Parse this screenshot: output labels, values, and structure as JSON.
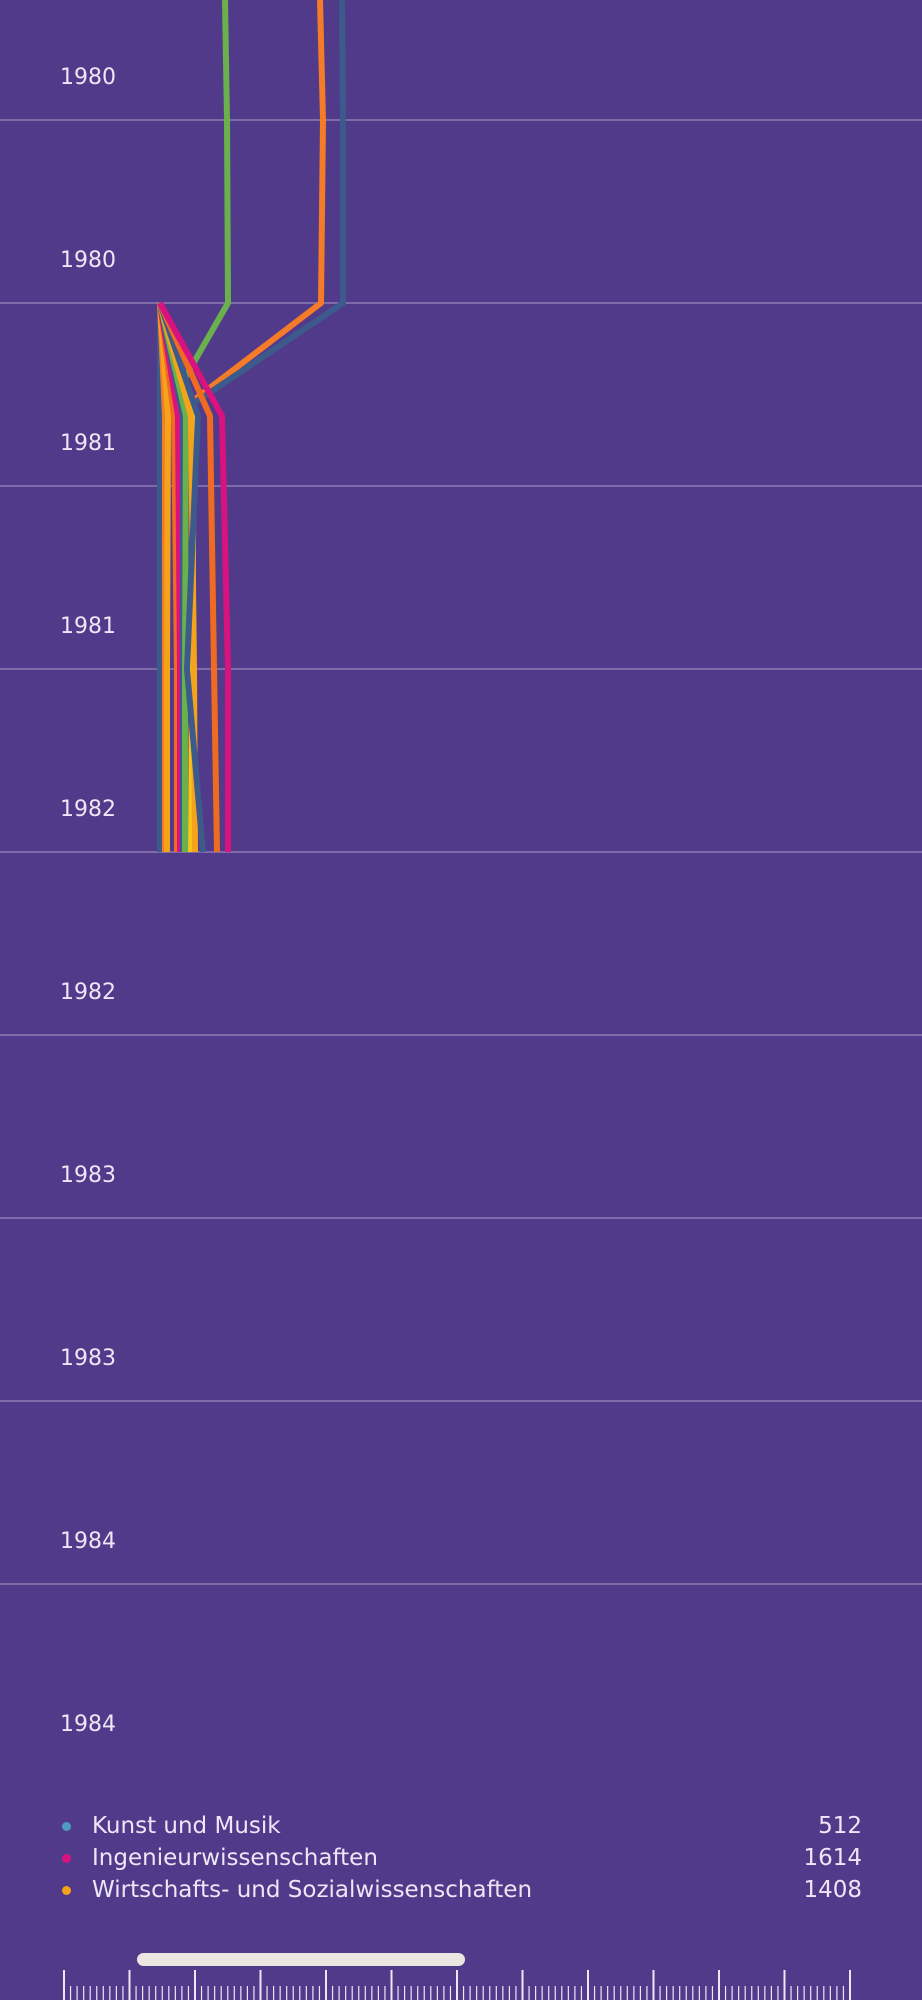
{
  "chart_data": {
    "type": "line",
    "orientation": "vertical-time-axis",
    "y_tick_labels": [
      "1980",
      "1980",
      "1981",
      "1981",
      "1982",
      "1982",
      "1983",
      "1983",
      "1984",
      "1984"
    ],
    "series": [
      {
        "color": "#6ab04c",
        "points": [
          [
            155,
            0
          ],
          [
            157,
            1
          ],
          [
            158,
            2
          ],
          [
            93,
            3
          ]
        ]
      },
      {
        "color": "#f47b27",
        "points": [
          [
            250,
            0
          ],
          [
            253,
            1
          ],
          [
            251,
            2
          ],
          [
            103,
            3
          ]
        ]
      },
      {
        "color": "#3d5a8c",
        "points": [
          [
            272,
            0
          ],
          [
            273,
            1
          ],
          [
            273,
            2
          ],
          [
            105,
            3
          ]
        ]
      },
      {
        "color": "#3d5a8c",
        "points": [
          [
            90,
            2
          ],
          [
            90,
            3
          ],
          [
            90,
            4
          ],
          [
            90,
            5
          ]
        ]
      },
      {
        "color": "#f47b27",
        "points": [
          [
            90,
            2
          ],
          [
            95,
            3
          ],
          [
            95,
            4
          ],
          [
            95,
            5
          ]
        ]
      },
      {
        "color": "#f5a31a",
        "points": [
          [
            90,
            2
          ],
          [
            98,
            3
          ],
          [
            97,
            4
          ],
          [
            97,
            5
          ]
        ]
      },
      {
        "color": "#f06b22",
        "points": [
          [
            90,
            2
          ],
          [
            104,
            3
          ],
          [
            107,
            4
          ],
          [
            107,
            5
          ]
        ]
      },
      {
        "color": "#d8127f",
        "points": [
          [
            90,
            2
          ],
          [
            108,
            3
          ],
          [
            110,
            4
          ],
          [
            110,
            5
          ]
        ]
      },
      {
        "color": "#3d5a8c",
        "points": [
          [
            90,
            2
          ],
          [
            113,
            3
          ],
          [
            113,
            4
          ],
          [
            113,
            5
          ]
        ]
      },
      {
        "color": "#6ab04c",
        "points": [
          [
            90,
            2
          ],
          [
            116,
            3
          ],
          [
            115,
            4
          ],
          [
            115,
            5
          ]
        ]
      },
      {
        "color": "#f5c518",
        "points": [
          [
            90,
            2
          ],
          [
            124,
            3
          ],
          [
            122,
            4
          ],
          [
            121,
            5
          ]
        ]
      },
      {
        "color": "#f5a31a",
        "points": [
          [
            90,
            2
          ],
          [
            121,
            3
          ],
          [
            124,
            4
          ],
          [
            125,
            5
          ]
        ]
      },
      {
        "color": "#3d5a8c",
        "points": [
          [
            90,
            2
          ],
          [
            128,
            3
          ],
          [
            117,
            4
          ],
          [
            133,
            5
          ]
        ]
      },
      {
        "color": "#f06b22",
        "points": [
          [
            90,
            2
          ],
          [
            140,
            3
          ],
          [
            144,
            4
          ],
          [
            147,
            5
          ]
        ]
      },
      {
        "color": "#d8127f",
        "points": [
          [
            90,
            2
          ],
          [
            152,
            3
          ],
          [
            158,
            4
          ],
          [
            158,
            5
          ]
        ]
      }
    ]
  },
  "legend": [
    {
      "label": "Kunst und Musik",
      "value": "512",
      "color": "#4f9bc0"
    },
    {
      "label": "Ingenieurwissenschaften",
      "value": "1614",
      "color": "#d8127f"
    },
    {
      "label": "Wirtschafts- und Sozialwissenschaften",
      "value": "1408",
      "color": "#f5a31a"
    }
  ],
  "scrollbar": {
    "position_fraction": 0.27
  }
}
